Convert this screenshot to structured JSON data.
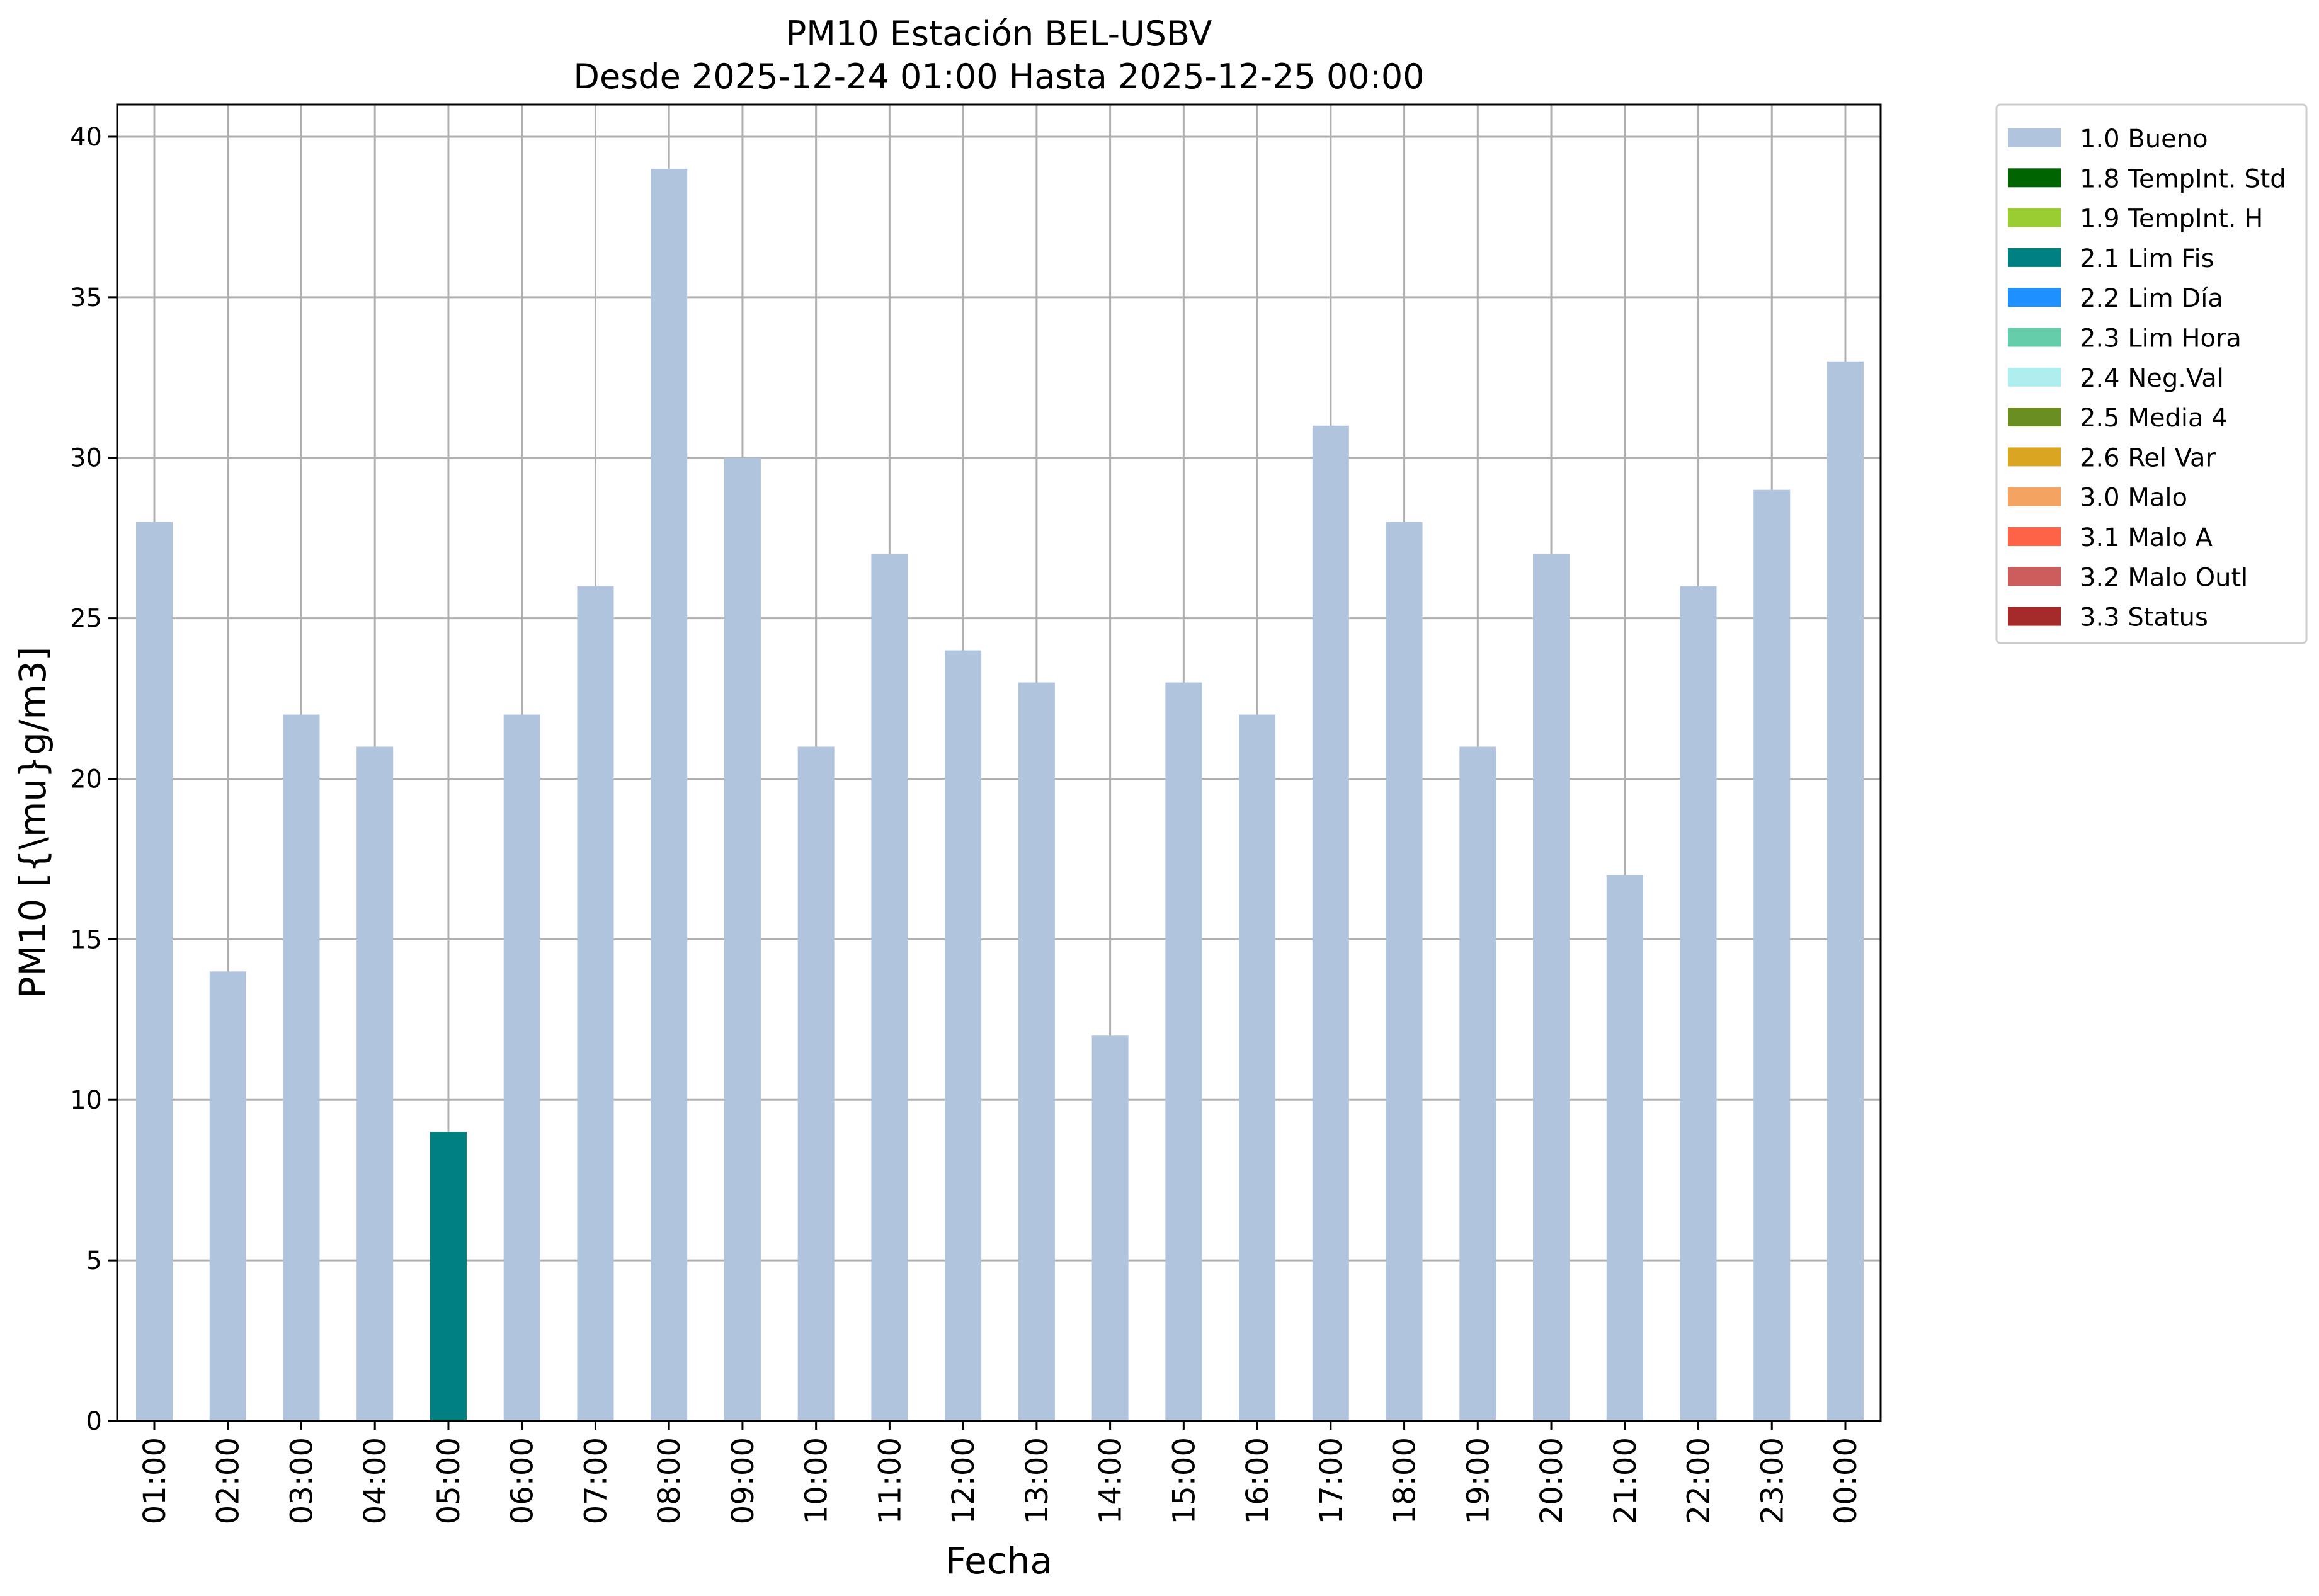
{
  "chart_data": {
    "type": "bar",
    "title": "PM10 Estación BEL-USBV",
    "subtitle": "Desde 2025-12-24 01:00 Hasta 2025-12-25 00:00",
    "xlabel": "Fecha",
    "ylabel": "PM10 [{\\mu}g/m3]",
    "ylim": [
      0,
      41
    ],
    "yticks": [
      0,
      5,
      10,
      15,
      20,
      25,
      30,
      35,
      40
    ],
    "grid": true,
    "legend_position": "outside-top-right",
    "categories": [
      "01:00",
      "02:00",
      "03:00",
      "04:00",
      "05:00",
      "06:00",
      "07:00",
      "08:00",
      "09:00",
      "10:00",
      "11:00",
      "12:00",
      "13:00",
      "14:00",
      "15:00",
      "16:00",
      "17:00",
      "18:00",
      "19:00",
      "20:00",
      "21:00",
      "22:00",
      "23:00",
      "00:00"
    ],
    "values": [
      28,
      14,
      22,
      21,
      9,
      22,
      26,
      39,
      30,
      21,
      27,
      24,
      23,
      12,
      23,
      22,
      31,
      28,
      21,
      27,
      17,
      26,
      29,
      33
    ],
    "flags": [
      "1.0 Bueno",
      "1.0 Bueno",
      "1.0 Bueno",
      "1.0 Bueno",
      "2.1 Lim Fis",
      "1.0 Bueno",
      "1.0 Bueno",
      "1.0 Bueno",
      "1.0 Bueno",
      "1.0 Bueno",
      "1.0 Bueno",
      "1.0 Bueno",
      "1.0 Bueno",
      "1.0 Bueno",
      "1.0 Bueno",
      "1.0 Bueno",
      "1.0 Bueno",
      "1.0 Bueno",
      "1.0 Bueno",
      "1.0 Bueno",
      "1.0 Bueno",
      "1.0 Bueno",
      "1.0 Bueno",
      "1.0 Bueno"
    ],
    "legend": [
      {
        "label": "1.0 Bueno",
        "color": "#b0c4de"
      },
      {
        "label": "1.8 TempInt. Std",
        "color": "#006400"
      },
      {
        "label": "1.9 TempInt. H",
        "color": "#9acd32"
      },
      {
        "label": "2.1 Lim Fis",
        "color": "#008080"
      },
      {
        "label": "2.2 Lim Día",
        "color": "#1e90ff"
      },
      {
        "label": "2.3 Lim Hora",
        "color": "#66cdaa"
      },
      {
        "label": "2.4 Neg.Val",
        "color": "#afeeee"
      },
      {
        "label": "2.5 Media 4",
        "color": "#6b8e23"
      },
      {
        "label": "2.6 Rel Var",
        "color": "#daa520"
      },
      {
        "label": "3.0 Malo",
        "color": "#f4a460"
      },
      {
        "label": "3.1 Malo A",
        "color": "#ff6347"
      },
      {
        "label": "3.2 Malo Outl",
        "color": "#cd5c5c"
      },
      {
        "label": "3.3 Status",
        "color": "#a52a2a"
      }
    ]
  }
}
